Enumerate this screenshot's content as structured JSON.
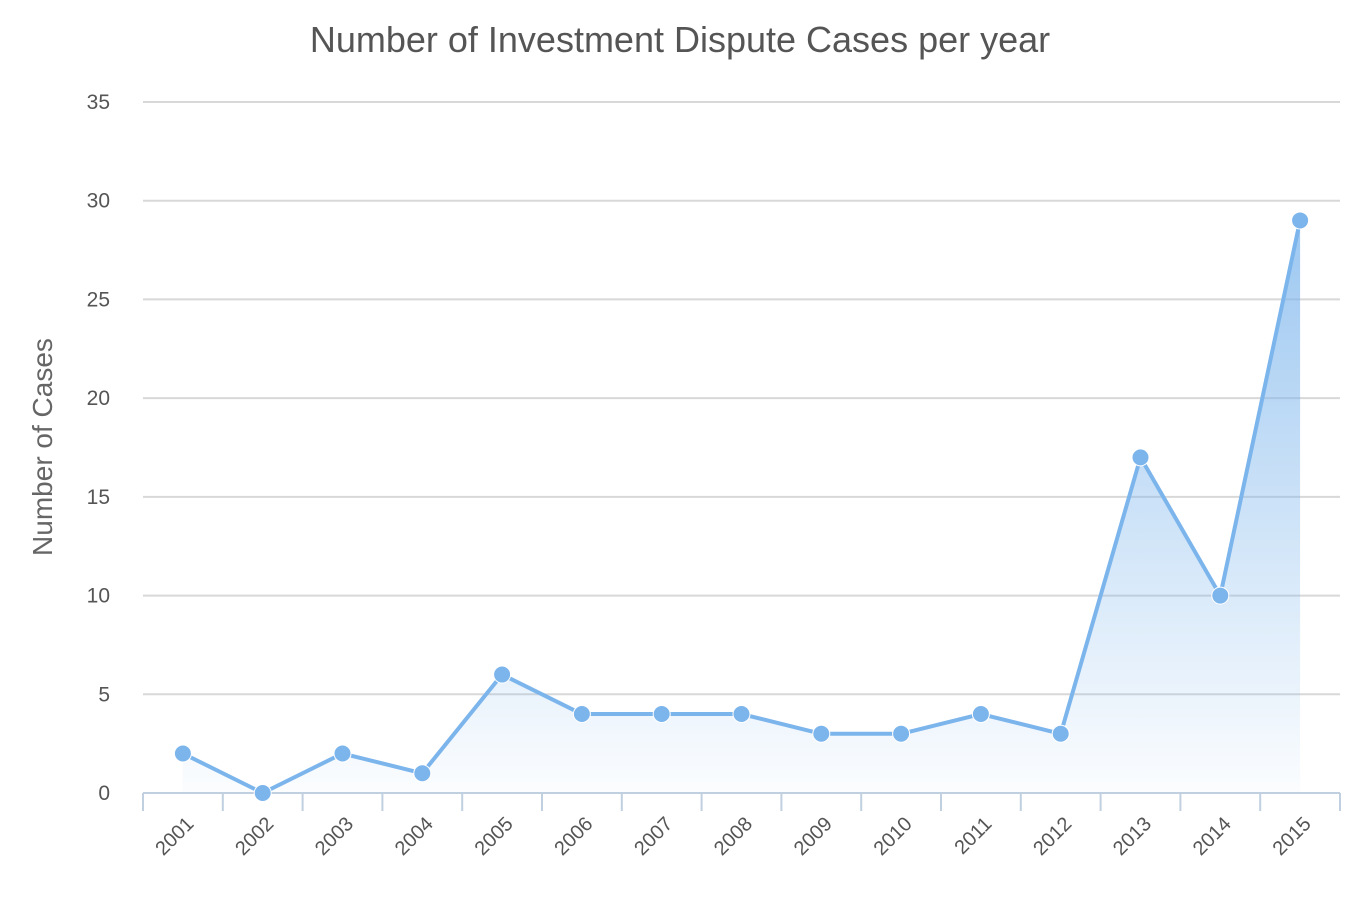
{
  "chart_data": {
    "type": "area",
    "title": "Number of Investment Dispute Cases per year",
    "xlabel": "",
    "ylabel": "Number of Cases",
    "categories": [
      "2001",
      "2002",
      "2003",
      "2004",
      "2005",
      "2006",
      "2007",
      "2008",
      "2009",
      "2010",
      "2011",
      "2012",
      "2013",
      "2014",
      "2015"
    ],
    "series": [
      {
        "values": [
          2,
          0,
          2,
          1,
          6,
          4,
          4,
          4,
          3,
          3,
          4,
          3,
          17,
          10,
          29
        ]
      }
    ],
    "ylim": [
      0,
      35
    ],
    "yticks": [
      "0",
      "5",
      "10",
      "15",
      "20",
      "25",
      "30",
      "35"
    ],
    "grid": true,
    "legend": "none",
    "colors": {
      "line": "#7cb5ec",
      "fill": "#7cb5ec",
      "grid": "#d8d8d8",
      "axis": "#c0d0e0"
    }
  }
}
